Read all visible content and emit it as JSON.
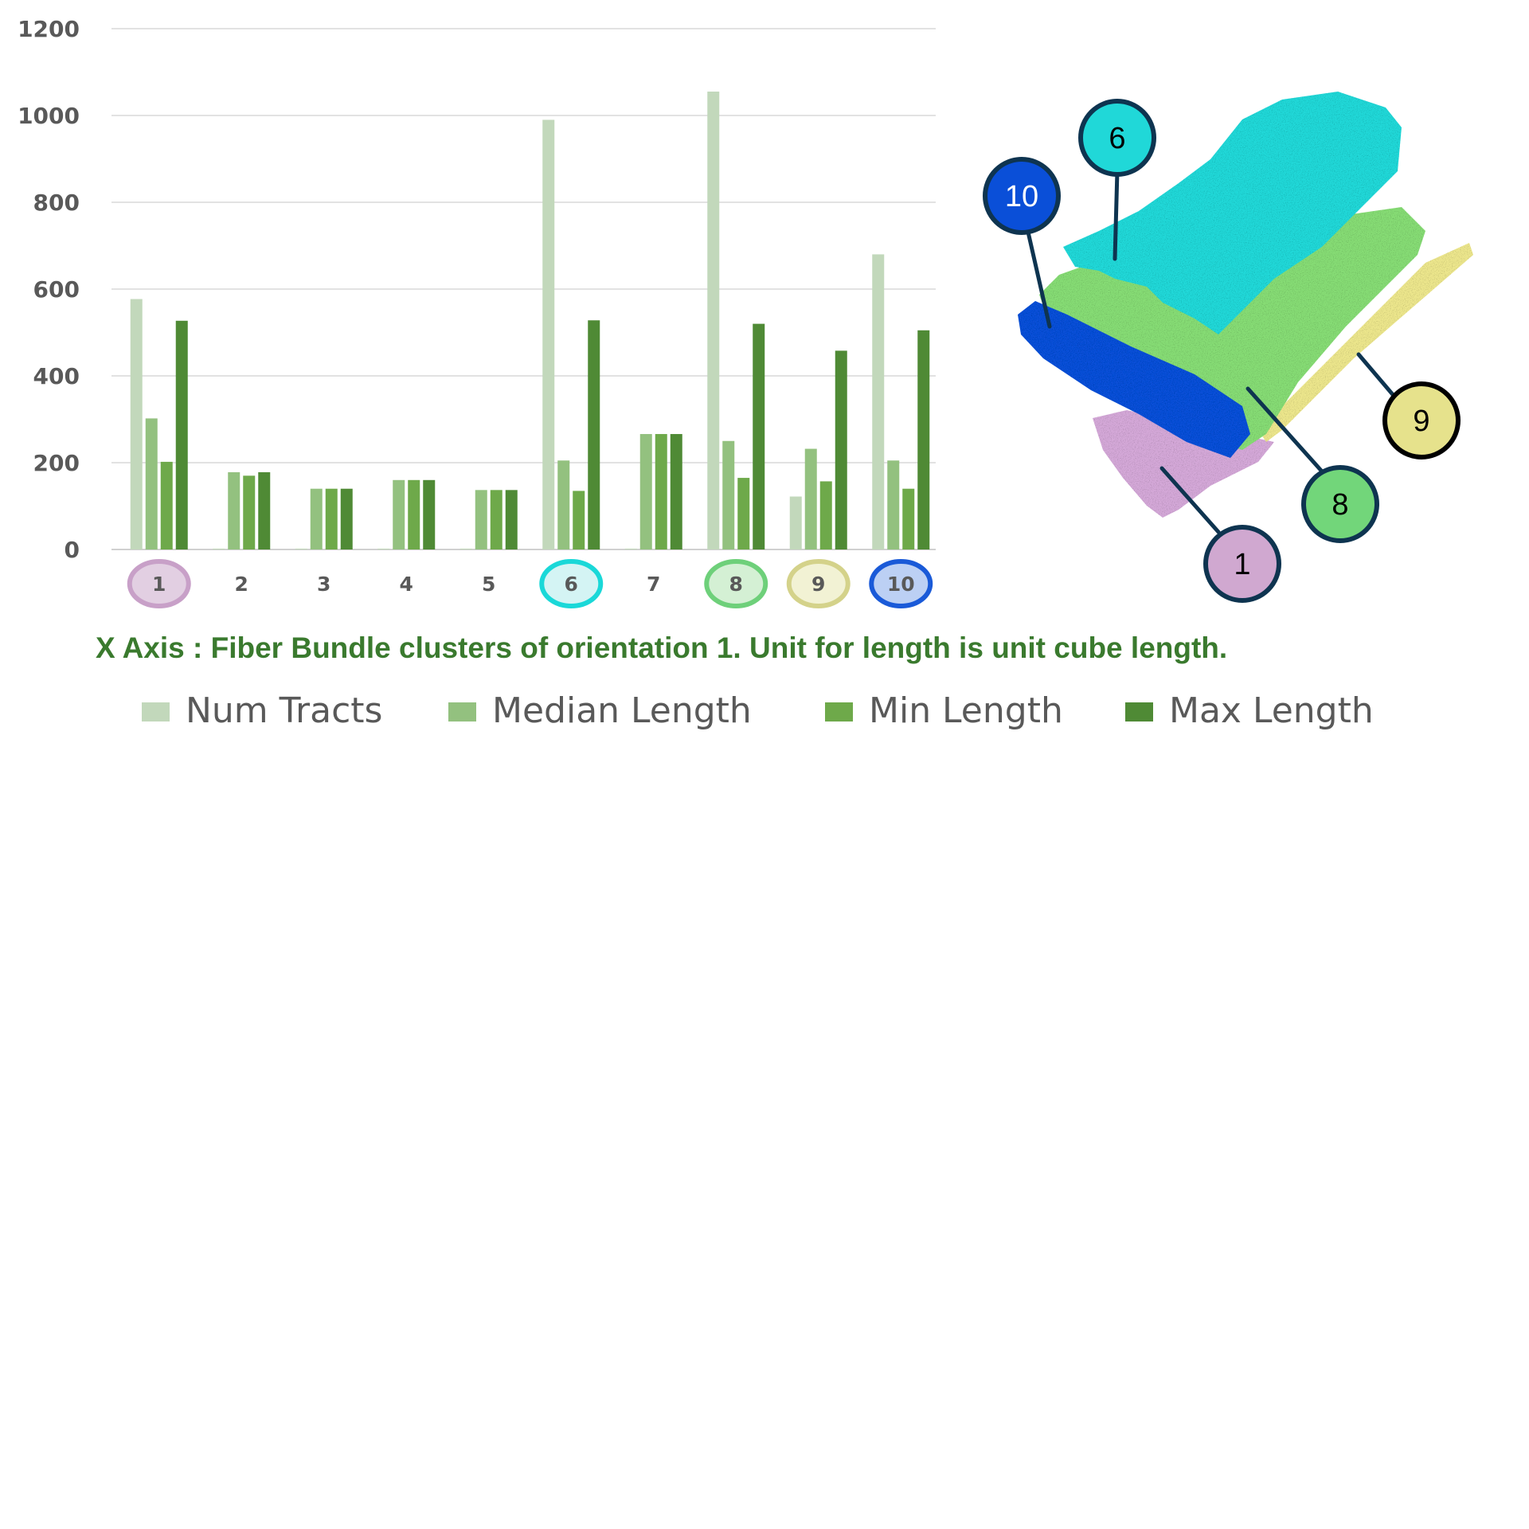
{
  "chart_data": {
    "type": "bar",
    "categories": [
      "1",
      "2",
      "3",
      "4",
      "5",
      "6",
      "7",
      "8",
      "9",
      "10"
    ],
    "series": [
      {
        "name": "Num Tracts",
        "color": "#c2d8bb",
        "values": [
          577,
          2,
          2,
          2,
          2,
          990,
          2,
          1055,
          122,
          680
        ]
      },
      {
        "name": "Median Length",
        "color": "#93c17f",
        "values": [
          302,
          178,
          140,
          160,
          137,
          205,
          266,
          250,
          232,
          205
        ]
      },
      {
        "name": "Min Length",
        "color": "#6ea94a",
        "values": [
          202,
          170,
          140,
          160,
          137,
          135,
          266,
          165,
          157,
          140
        ]
      },
      {
        "name": "Max Length",
        "color": "#4f8a35",
        "values": [
          527,
          178,
          140,
          160,
          137,
          528,
          266,
          520,
          458,
          505
        ]
      }
    ],
    "ylim": [
      0,
      1200
    ],
    "yticks": [
      "0",
      "200",
      "400",
      "600",
      "800",
      "1000",
      "1200"
    ],
    "grid": true,
    "legend_position": "bottom",
    "highlighted_categories": {
      "1": {
        "fill": "#e2cfe2",
        "stroke": "#c8a0c8"
      },
      "6": {
        "fill": "#d4f4f4",
        "stroke": "#1ad8d8"
      },
      "8": {
        "fill": "#d4f0d4",
        "stroke": "#6ed07a"
      },
      "9": {
        "fill": "#f2f2d4",
        "stroke": "#d4d28a"
      },
      "10": {
        "fill": "#bcd0f4",
        "stroke": "#1a5ad8"
      }
    },
    "caption": "X Axis : Fiber Bundle clusters of orientation 1.  Unit for length is unit cube length."
  },
  "illustration": {
    "callouts": [
      {
        "label": "6",
        "color": "#20d8d8",
        "text_color": "#000000"
      },
      {
        "label": "10",
        "color": "#0a4fd8",
        "text_color": "#ffffff"
      },
      {
        "label": "9",
        "color": "#e6e28c",
        "text_color": "#000000"
      },
      {
        "label": "8",
        "color": "#72d67a",
        "text_color": "#000000"
      },
      {
        "label": "1",
        "color": "#d0a8d0",
        "text_color": "#000000"
      }
    ],
    "layer_colors": {
      "pink": "#d4a8d8",
      "blue": "#0a4fd8",
      "green": "#86dc74",
      "yellow": "#ece68c",
      "cyan": "#22d8d8"
    }
  }
}
